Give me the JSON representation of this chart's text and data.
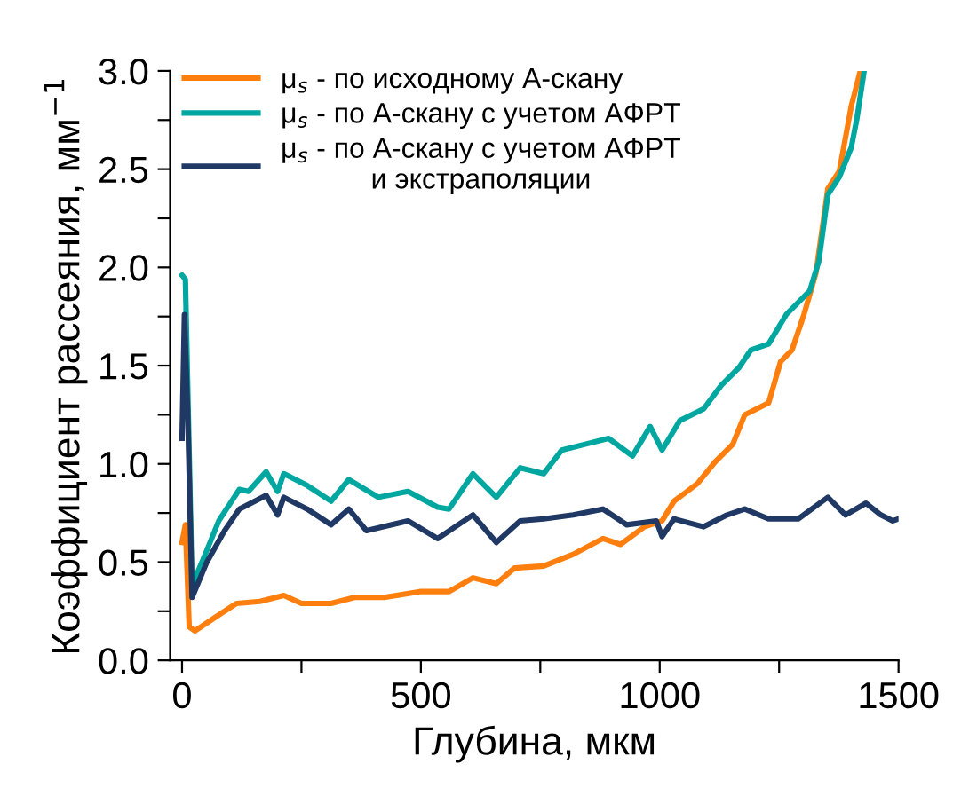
{
  "chart_data": {
    "type": "line",
    "xlabel": "Глубина, мкм",
    "ylabel": "Коэффициент рассеяния, мм$^{−1}$",
    "xlim": [
      -25,
      1500
    ],
    "ylim": [
      0,
      3.0
    ],
    "xticks": [
      0,
      {
        "value": 250,
        "label": null
      },
      500,
      {
        "value": 750,
        "label": null
      },
      1000,
      {
        "value": 1250,
        "label": null
      },
      1500
    ],
    "yticks": [
      "0.0",
      {
        "value": 0.25,
        "label": null
      },
      {
        "value": 0.5,
        "label": "0.5"
      },
      {
        "value": 0.75,
        "label": null
      },
      {
        "value": 1.0,
        "label": "1.0"
      },
      {
        "value": 1.25,
        "label": null
      },
      {
        "value": 1.5,
        "label": "1.5"
      },
      {
        "value": 1.75,
        "label": null
      },
      {
        "value": 2.0,
        "label": "2.0"
      },
      {
        "value": 2.25,
        "label": null
      },
      {
        "value": 2.5,
        "label": "2.5"
      },
      {
        "value": 2.75,
        "label": null
      },
      {
        "value": 3.0,
        "label": "3.0"
      }
    ],
    "grid": false,
    "legend": "top left",
    "marker": "none",
    "line_style": "solid",
    "series": [
      {
        "name": "μ$_{s}$ - по исходному А-скану",
        "color": "#ff7f0e",
        "x": [
          0,
          7,
          15,
          27,
          64,
          114,
          163,
          213,
          250,
          312,
          361,
          423,
          498,
          559,
          609,
          658,
          696,
          757,
          819,
          881,
          918,
          968,
          1005,
          1030,
          1079,
          1116,
          1153,
          1178,
          1203,
          1228,
          1253,
          1277,
          1302,
          1327,
          1352,
          1376,
          1401,
          1420
        ],
        "values": [
          0.6,
          0.69,
          0.17,
          0.15,
          0.21,
          0.29,
          0.3,
          0.33,
          0.29,
          0.29,
          0.32,
          0.32,
          0.35,
          0.35,
          0.42,
          0.39,
          0.47,
          0.48,
          0.54,
          0.62,
          0.59,
          0.68,
          0.71,
          0.81,
          0.9,
          1.01,
          1.1,
          1.25,
          1.28,
          1.31,
          1.52,
          1.58,
          1.76,
          1.97,
          2.4,
          2.49,
          2.82,
          3.0
        ]
      },
      {
        "name": "μ$_{s}$ - по А-скану с учетом АФРТ",
        "color": "#00a6a0",
        "x": [
          0,
          7,
          21,
          52,
          77,
          120,
          139,
          176,
          200,
          213,
          262,
          312,
          349,
          411,
          473,
          535,
          559,
          609,
          658,
          708,
          757,
          795,
          844,
          893,
          943,
          980,
          1005,
          1042,
          1092,
          1129,
          1166,
          1191,
          1228,
          1265,
          1314,
          1333,
          1352,
          1376,
          1401,
          1413,
          1428
        ],
        "values": [
          1.96,
          1.94,
          0.38,
          0.56,
          0.71,
          0.87,
          0.86,
          0.96,
          0.86,
          0.95,
          0.89,
          0.81,
          0.92,
          0.83,
          0.86,
          0.78,
          0.77,
          0.95,
          0.83,
          0.98,
          0.95,
          1.07,
          1.1,
          1.13,
          1.04,
          1.19,
          1.07,
          1.22,
          1.28,
          1.4,
          1.49,
          1.58,
          1.61,
          1.76,
          1.88,
          2.03,
          2.37,
          2.46,
          2.61,
          2.76,
          3.0
        ]
      },
      {
        "name": "μ$_{s}$ - по А-скану с учетом АФРТ\nи экстраполяции",
        "color": "#1f3864",
        "x": [
          0,
          5,
          12,
          21,
          52,
          89,
          120,
          176,
          200,
          213,
          262,
          312,
          349,
          386,
          473,
          535,
          609,
          658,
          708,
          757,
          819,
          881,
          931,
          993,
          1005,
          1030,
          1092,
          1141,
          1178,
          1228,
          1290,
          1352,
          1389,
          1432,
          1463,
          1488,
          1500
        ],
        "values": [
          1.13,
          1.76,
          1.25,
          0.32,
          0.5,
          0.66,
          0.77,
          0.84,
          0.74,
          0.83,
          0.77,
          0.69,
          0.77,
          0.66,
          0.71,
          0.62,
          0.74,
          0.6,
          0.71,
          0.72,
          0.74,
          0.77,
          0.69,
          0.71,
          0.63,
          0.72,
          0.68,
          0.74,
          0.77,
          0.72,
          0.72,
          0.83,
          0.74,
          0.8,
          0.74,
          0.71,
          0.72
        ]
      }
    ]
  }
}
